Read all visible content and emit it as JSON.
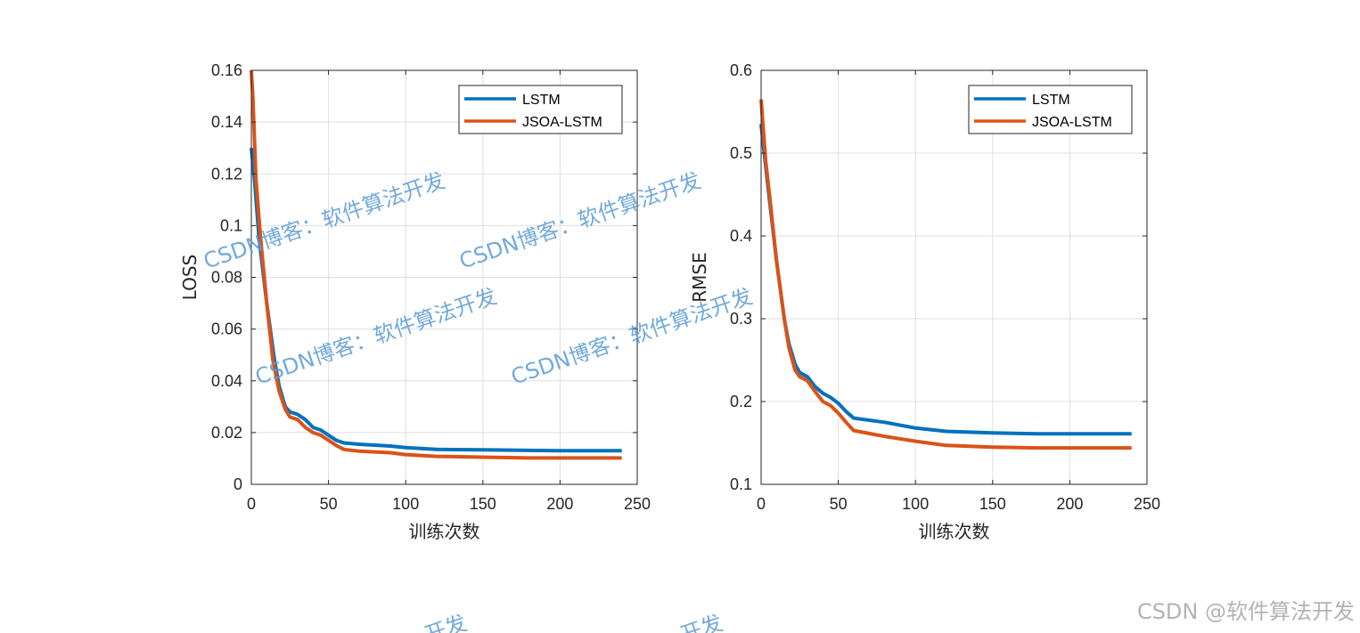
{
  "colors": {
    "lstm": "#0072bd",
    "jsoa": "#d95319",
    "grid": "#dfdfdf",
    "axis": "#262626",
    "watermark": "#5b9bd5"
  },
  "chart_data": [
    {
      "type": "line",
      "title": "",
      "xlabel": "训练次数",
      "ylabel": "LOSS",
      "xlim": [
        0,
        250
      ],
      "ylim": [
        0,
        0.16
      ],
      "xticks": [
        0,
        50,
        100,
        150,
        200,
        250
      ],
      "xtick_labels": [
        "0",
        "50",
        "100",
        "150",
        "200",
        "250"
      ],
      "yticks": [
        0,
        0.02,
        0.04,
        0.06,
        0.08,
        0.1,
        0.12,
        0.14,
        0.16
      ],
      "ytick_labels": [
        "0",
        "0.02",
        "0.04",
        "0.06",
        "0.08",
        "0.1",
        "0.12",
        "0.14",
        "0.16"
      ],
      "grid": true,
      "legend_position": "top-right",
      "series": [
        {
          "name": "LSTM",
          "color": "#0072bd",
          "x": [
            0,
            2,
            5,
            10,
            15,
            18,
            22,
            25,
            30,
            35,
            40,
            45,
            50,
            55,
            60,
            70,
            90,
            100,
            120,
            150,
            180,
            200,
            240
          ],
          "y": [
            0.13,
            0.118,
            0.095,
            0.07,
            0.048,
            0.038,
            0.03,
            0.028,
            0.027,
            0.025,
            0.022,
            0.021,
            0.019,
            0.017,
            0.016,
            0.0155,
            0.0148,
            0.0142,
            0.0135,
            0.0133,
            0.0131,
            0.013,
            0.013
          ]
        },
        {
          "name": "JSOA-LSTM",
          "color": "#d95319",
          "x": [
            0,
            1,
            3,
            6,
            10,
            14,
            18,
            22,
            25,
            30,
            35,
            40,
            45,
            50,
            55,
            60,
            70,
            90,
            100,
            120,
            150,
            180,
            200,
            240
          ],
          "y": [
            0.16,
            0.15,
            0.118,
            0.095,
            0.07,
            0.048,
            0.036,
            0.029,
            0.026,
            0.025,
            0.022,
            0.02,
            0.019,
            0.017,
            0.015,
            0.0135,
            0.0128,
            0.0122,
            0.0115,
            0.0108,
            0.0105,
            0.0102,
            0.0102,
            0.0102
          ]
        }
      ]
    },
    {
      "type": "line",
      "title": "",
      "xlabel": "训练次数",
      "ylabel": "RMSE",
      "xlim": [
        0,
        250
      ],
      "ylim": [
        0.1,
        0.6
      ],
      "xticks": [
        0,
        50,
        100,
        150,
        200,
        250
      ],
      "xtick_labels": [
        "0",
        "50",
        "100",
        "150",
        "200",
        "250"
      ],
      "yticks": [
        0.1,
        0.2,
        0.3,
        0.4,
        0.5,
        0.6
      ],
      "ytick_labels": [
        "0.1",
        "0.2",
        "0.3",
        "0.4",
        "0.5",
        "0.6"
      ],
      "grid": true,
      "legend_position": "top-right",
      "series": [
        {
          "name": "LSTM",
          "color": "#0072bd",
          "x": [
            0,
            2,
            5,
            10,
            15,
            18,
            22,
            25,
            30,
            35,
            40,
            45,
            50,
            55,
            60,
            80,
            100,
            120,
            150,
            180,
            200,
            240
          ],
          "y": [
            0.535,
            0.5,
            0.45,
            0.37,
            0.3,
            0.27,
            0.245,
            0.235,
            0.23,
            0.218,
            0.21,
            0.205,
            0.198,
            0.188,
            0.18,
            0.175,
            0.168,
            0.164,
            0.162,
            0.161,
            0.161,
            0.161
          ]
        },
        {
          "name": "JSOA-LSTM",
          "color": "#d95319",
          "x": [
            0,
            1,
            3,
            6,
            10,
            15,
            18,
            22,
            25,
            30,
            35,
            40,
            45,
            50,
            55,
            60,
            80,
            100,
            120,
            150,
            180,
            200,
            240
          ],
          "y": [
            0.565,
            0.54,
            0.49,
            0.44,
            0.37,
            0.3,
            0.265,
            0.238,
            0.23,
            0.225,
            0.212,
            0.2,
            0.195,
            0.186,
            0.175,
            0.165,
            0.158,
            0.152,
            0.147,
            0.145,
            0.144,
            0.144,
            0.144
          ]
        }
      ]
    }
  ],
  "watermarks": {
    "text": "CSDN博客：软件算法开发",
    "items": [
      "CSDN博客：软件算法开发",
      "CSDN博客：软件算法开发",
      "CSDN博客：软件算法开发",
      "CSDN博客：软件算法开发"
    ],
    "partial_bottom": [
      "开发",
      "开发"
    ],
    "credit": "CSDN @软件算法开发"
  }
}
